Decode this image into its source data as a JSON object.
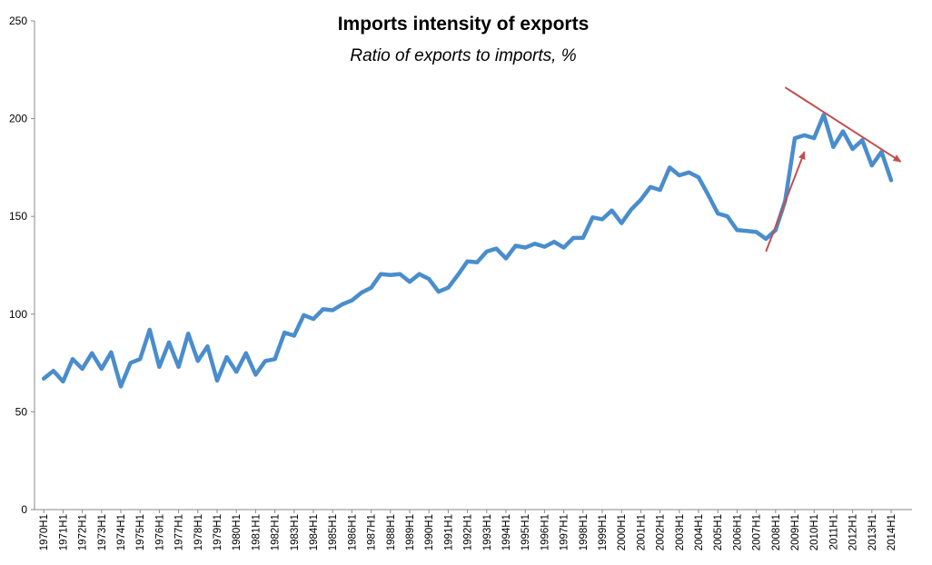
{
  "chart_data": {
    "type": "line",
    "title": "Imports intensity of exports",
    "subtitle": "Ratio of exports to imports, %",
    "xlabel": "",
    "ylabel": "",
    "ylim": [
      0,
      250
    ],
    "yticks": [
      0,
      50,
      100,
      150,
      200,
      250
    ],
    "grid": false,
    "legend": "none",
    "x": [
      "1970H1",
      "1970H2",
      "1971H1",
      "1971H2",
      "1972H1",
      "1972H2",
      "1973H1",
      "1973H2",
      "1974H1",
      "1974H2",
      "1975H1",
      "1975H2",
      "1976H1",
      "1976H2",
      "1977H1",
      "1977H2",
      "1978H1",
      "1978H2",
      "1979H1",
      "1979H2",
      "1980H1",
      "1980H2",
      "1981H1",
      "1981H2",
      "1982H1",
      "1982H2",
      "1983H1",
      "1983H2",
      "1984H1",
      "1984H2",
      "1985H1",
      "1985H2",
      "1986H1",
      "1986H2",
      "1987H1",
      "1987H2",
      "1988H1",
      "1988H2",
      "1989H1",
      "1989H2",
      "1990H1",
      "1990H2",
      "1991H1",
      "1991H2",
      "1992H1",
      "1992H2",
      "1993H1",
      "1993H2",
      "1994H1",
      "1994H2",
      "1995H1",
      "1995H2",
      "1996H1",
      "1996H2",
      "1997H1",
      "1997H2",
      "1998H1",
      "1998H2",
      "1999H1",
      "1999H2",
      "2000H1",
      "2000H2",
      "2001H1",
      "2001H2",
      "2002H1",
      "2002H2",
      "2003H1",
      "2003H2",
      "2004H1",
      "2004H2",
      "2005H1",
      "2005H2",
      "2006H1",
      "2006H2",
      "2007H1",
      "2007H2",
      "2008H1",
      "2008H2",
      "2009H1",
      "2009H2",
      "2010H1",
      "2010H2",
      "2011H1",
      "2011H2",
      "2012H1",
      "2012H2",
      "2013H1",
      "2013H2",
      "2014H1"
    ],
    "tick_labels": [
      "1970H1",
      "1971H1",
      "1972H1",
      "1973H1",
      "1974H1",
      "1975H1",
      "1976H1",
      "1977H1",
      "1978H1",
      "1979H1",
      "1980H1",
      "1981H1",
      "1982H1",
      "1983H1",
      "1984H1",
      "1985H1",
      "1986H1",
      "1987H1",
      "1988H1",
      "1989H1",
      "1990H1",
      "1991H1",
      "1992H1",
      "1993H1",
      "1994H1",
      "1995H1",
      "1996H1",
      "1997H1",
      "1998H1",
      "1999H1",
      "2000H1",
      "2001H1",
      "2002H1",
      "2003H1",
      "2004H1",
      "2005H1",
      "2006H1",
      "2007H1",
      "2008H1",
      "2009H1",
      "2010H1",
      "2011H1",
      "2012H1",
      "2013H1",
      "2014H1"
    ],
    "series": [
      {
        "name": "Ratio of exports to imports",
        "color": "#4a8dcc",
        "values": [
          67,
          71,
          65.5,
          77,
          72,
          80,
          72,
          80.5,
          63,
          75,
          77,
          92,
          73,
          85.5,
          73,
          90,
          76,
          83.5,
          66,
          78,
          70.5,
          80,
          69,
          76,
          77,
          90.5,
          89,
          99.5,
          97.5,
          102.5,
          102,
          105,
          107,
          111,
          113.5,
          120.5,
          120,
          120.5,
          116.5,
          120.5,
          118,
          111.5,
          113.5,
          120,
          127,
          126.5,
          132,
          133.5,
          128.5,
          135,
          134,
          136,
          134.5,
          137,
          134,
          139,
          139,
          149.5,
          148.5,
          153,
          146.5,
          153.5,
          158.5,
          165,
          163.5,
          175,
          171,
          172.5,
          170,
          161,
          151.5,
          150,
          143,
          142.5,
          142,
          138.5,
          143,
          158,
          190,
          191.5,
          190,
          202,
          185.5,
          193.5,
          184.5,
          189,
          176,
          183,
          168.5
        ]
      }
    ],
    "annotations": [
      {
        "type": "arrow",
        "color": "#c0504d",
        "from": [
          "2007H2",
          132
        ],
        "to": [
          "2009H2",
          183
        ],
        "meaning": "rise"
      },
      {
        "type": "arrow",
        "color": "#c0504d",
        "from": [
          "2008H2",
          216
        ],
        "to": [
          "2014H2",
          178
        ],
        "meaning": "decline"
      }
    ]
  }
}
